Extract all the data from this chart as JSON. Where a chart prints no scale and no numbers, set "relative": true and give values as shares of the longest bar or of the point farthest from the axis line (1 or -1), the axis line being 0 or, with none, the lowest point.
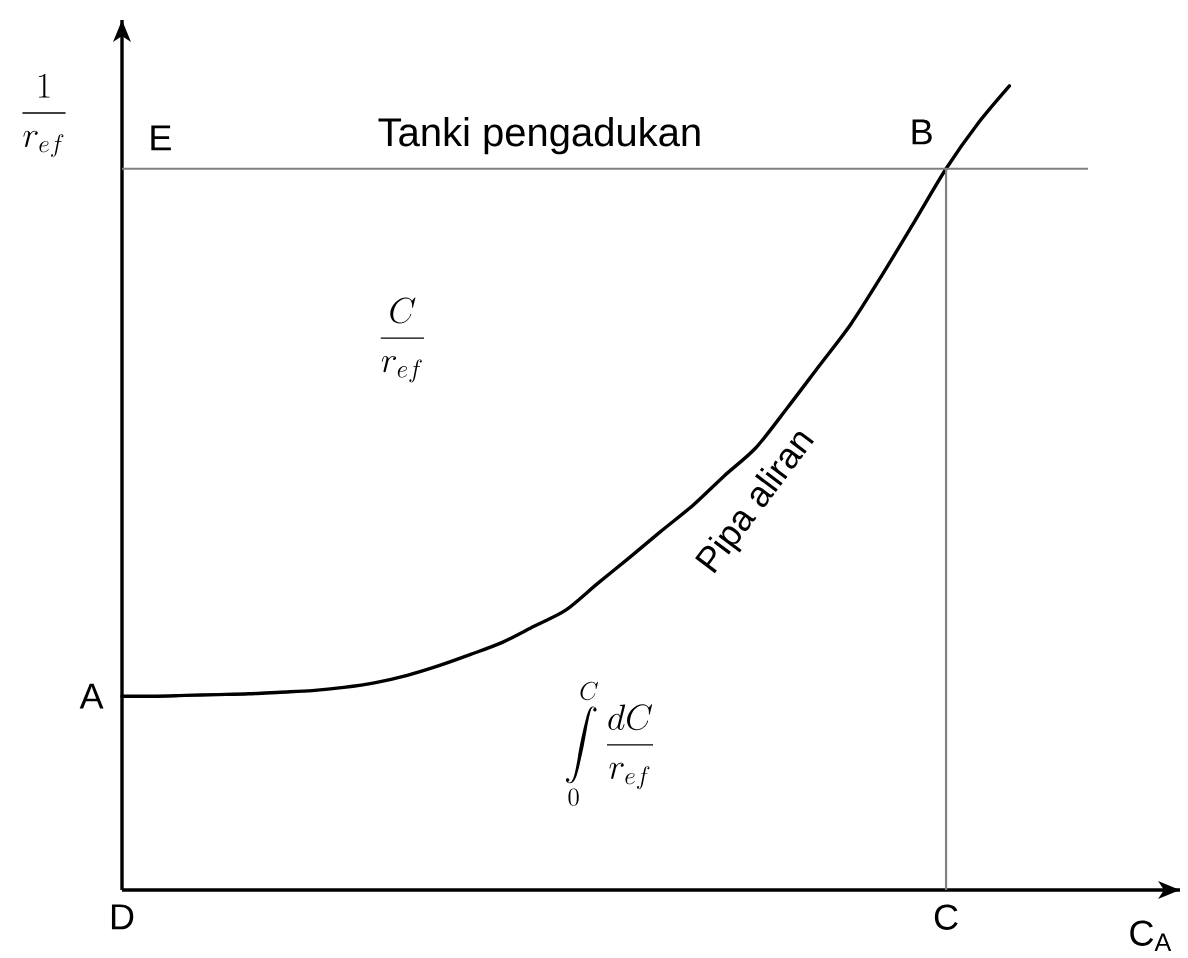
{
  "chart_data": {
    "type": "line",
    "relative": true,
    "xlabel": "C$_{A}$",
    "ylabel": "\\frac{1}{r_{ef}}",
    "categories": [
      "D",
      null,
      null,
      null,
      null,
      null,
      null,
      null,
      null,
      null,
      null,
      null,
      null,
      null,
      null,
      null,
      null,
      null,
      null,
      null,
      null,
      null,
      null,
      null,
      null,
      null,
      "C",
      null,
      null
    ],
    "series": [
      {
        "name": "Pipa aliran",
        "color": "#000000",
        "values": [
          0.241,
          0.241,
          0.242,
          0.243,
          0.244,
          0.246,
          0.248,
          0.252,
          0.258,
          0.267,
          0.279,
          0.293,
          0.308,
          0.328,
          0.348,
          0.381,
          0.413,
          0.446,
          0.478,
          0.515,
          0.55,
          0.6,
          0.652,
          0.704,
          0.766,
          0.831,
          0.897,
          0.953,
          1.0
        ]
      }
    ],
    "ref_lines": [
      {
        "axis": "y",
        "value": 0.897,
        "label": "Tanki pengadukan",
        "color": "#808080"
      },
      {
        "axis": "x",
        "value": "C",
        "color": "#808080"
      }
    ],
    "annotations": [
      {
        "text": "A",
        "x": "D",
        "y": 0.241
      },
      {
        "text": "B",
        "x": "C",
        "y": 0.897
      },
      {
        "text": "E",
        "x": "D",
        "y": 0.897
      },
      "\\frac{C}{r_{ef}}",
      "\\int\\limits_{0}^{C}\\frac{dC}{r_{ef}}"
    ],
    "marker": "none",
    "line_style": "solid"
  }
}
